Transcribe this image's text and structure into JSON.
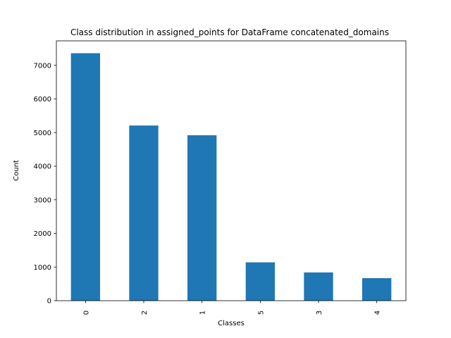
{
  "chart_data": {
    "type": "bar",
    "title": "Class distribution in assigned_points for DataFrame concatenated_domains",
    "xlabel": "Classes",
    "ylabel": "Count",
    "categories": [
      "0",
      "2",
      "1",
      "5",
      "3",
      "4"
    ],
    "values": [
      7360,
      5210,
      4920,
      1140,
      840,
      670
    ],
    "ylim": [
      0,
      7728
    ],
    "yticks": [
      0,
      1000,
      2000,
      3000,
      4000,
      5000,
      6000,
      7000
    ],
    "bar_color": "#1f77b4",
    "grid": false,
    "legend": "none"
  }
}
